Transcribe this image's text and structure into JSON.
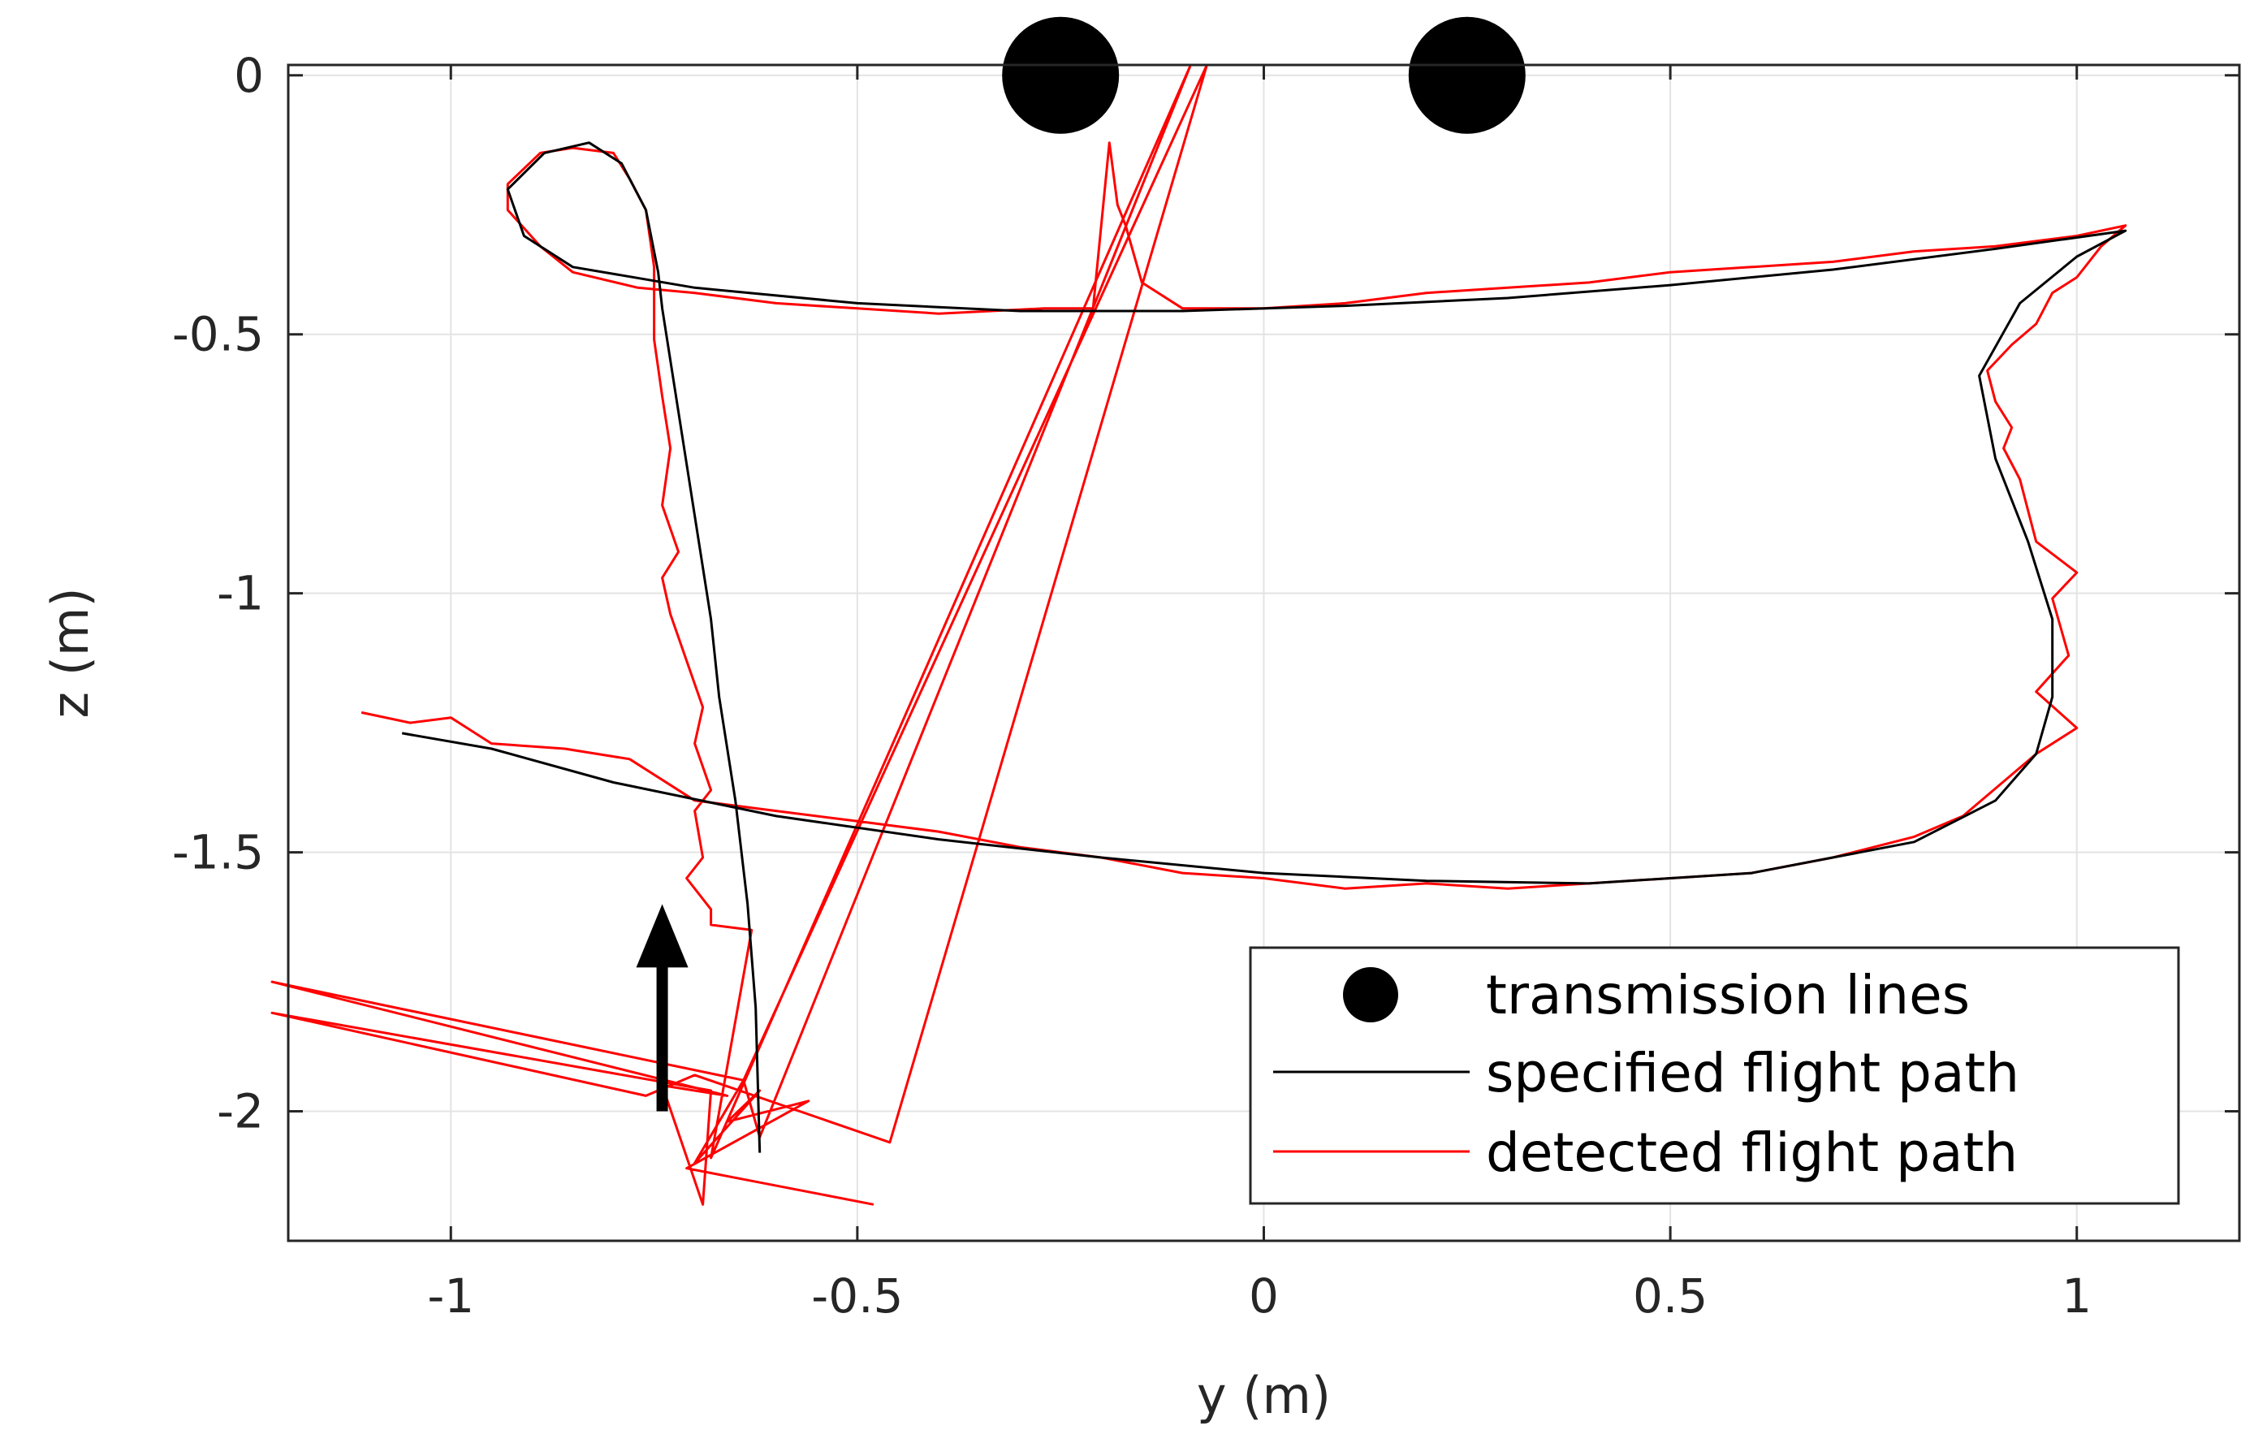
{
  "chart_data": {
    "type": "line",
    "xlabel": "y (m)",
    "ylabel": "z (m)",
    "xlim": [
      -1.2,
      1.2
    ],
    "ylim": [
      -2.25,
      0.02
    ],
    "x_ticks": [
      -1,
      -0.5,
      0,
      0.5,
      1
    ],
    "x_tick_labels": [
      "-1",
      "-0.5",
      "0",
      "0.5",
      "1"
    ],
    "y_ticks": [
      0,
      -0.5,
      -1,
      -1.5,
      -2
    ],
    "y_tick_labels": [
      "0",
      "-0.5",
      "-1",
      "-1.5",
      "-2"
    ],
    "grid": true,
    "legend_position": "bottom-right",
    "colors": {
      "transmission": "#000000",
      "specified": "#000000",
      "detected": "#ff0000",
      "grid": "#e3e3e3",
      "axis": "#262626"
    },
    "transmission_lines": {
      "name": "transmission lines",
      "points": [
        [
          -0.25,
          0.0
        ],
        [
          0.25,
          0.0
        ]
      ]
    },
    "annotation": {
      "type": "arrow",
      "from": [
        -0.74,
        -2.0
      ],
      "to": [
        -0.74,
        -1.6
      ]
    },
    "series": [
      {
        "name": "specified flight path",
        "points": [
          [
            -0.62,
            -2.08
          ],
          [
            -0.625,
            -1.8
          ],
          [
            -0.635,
            -1.6
          ],
          [
            -0.65,
            -1.4
          ],
          [
            -0.67,
            -1.2
          ],
          [
            -0.68,
            -1.05
          ],
          [
            -0.695,
            -0.9
          ],
          [
            -0.71,
            -0.75
          ],
          [
            -0.725,
            -0.6
          ],
          [
            -0.74,
            -0.45
          ],
          [
            -0.745,
            -0.38
          ],
          [
            -0.76,
            -0.26
          ],
          [
            -0.79,
            -0.17
          ],
          [
            -0.83,
            -0.13
          ],
          [
            -0.885,
            -0.15
          ],
          [
            -0.93,
            -0.22
          ],
          [
            -0.91,
            -0.31
          ],
          [
            -0.85,
            -0.37
          ],
          [
            -0.7,
            -0.41
          ],
          [
            -0.5,
            -0.44
          ],
          [
            -0.3,
            -0.455
          ],
          [
            -0.1,
            -0.455
          ],
          [
            0.1,
            -0.445
          ],
          [
            0.3,
            -0.43
          ],
          [
            0.5,
            -0.405
          ],
          [
            0.7,
            -0.375
          ],
          [
            0.9,
            -0.335
          ],
          [
            1.06,
            -0.3
          ],
          [
            1.0,
            -0.35
          ],
          [
            0.93,
            -0.44
          ],
          [
            0.88,
            -0.58
          ],
          [
            0.9,
            -0.74
          ],
          [
            0.94,
            -0.9
          ],
          [
            0.97,
            -1.05
          ],
          [
            0.97,
            -1.2
          ],
          [
            0.95,
            -1.31
          ],
          [
            0.9,
            -1.4
          ],
          [
            0.8,
            -1.48
          ],
          [
            0.6,
            -1.54
          ],
          [
            0.4,
            -1.56
          ],
          [
            0.2,
            -1.555
          ],
          [
            0.0,
            -1.54
          ],
          [
            -0.2,
            -1.51
          ],
          [
            -0.4,
            -1.475
          ],
          [
            -0.6,
            -1.43
          ],
          [
            -0.8,
            -1.365
          ],
          [
            -0.95,
            -1.3
          ],
          [
            -1.06,
            -1.27
          ]
        ]
      },
      {
        "name": "detected flight path",
        "points": [
          [
            -0.48,
            -2.18
          ],
          [
            -0.71,
            -2.11
          ],
          [
            -0.56,
            -1.98
          ],
          [
            -0.66,
            -2.02
          ],
          [
            -0.62,
            -1.96
          ],
          [
            -0.7,
            -2.1
          ],
          [
            -0.64,
            -1.94
          ],
          [
            -1.22,
            -1.75
          ],
          [
            -0.66,
            -1.97
          ],
          [
            -0.74,
            -1.95
          ],
          [
            -0.69,
            -2.18
          ],
          [
            -0.68,
            -1.96
          ],
          [
            -1.22,
            -1.81
          ],
          [
            -0.76,
            -1.97
          ],
          [
            -0.7,
            -1.93
          ],
          [
            -0.46,
            -2.06
          ],
          [
            -0.07,
            0.02
          ],
          [
            -0.64,
            -1.94
          ],
          [
            -0.62,
            -2.05
          ],
          [
            -0.09,
            0.02
          ],
          [
            -0.68,
            -2.09
          ],
          [
            -0.63,
            -1.65
          ],
          [
            -0.68,
            -1.64
          ],
          [
            -0.68,
            -1.61
          ],
          [
            -0.71,
            -1.55
          ],
          [
            -0.69,
            -1.51
          ],
          [
            -0.7,
            -1.42
          ],
          [
            -0.68,
            -1.38
          ],
          [
            -0.7,
            -1.29
          ],
          [
            -0.69,
            -1.22
          ],
          [
            -0.71,
            -1.13
          ],
          [
            -0.73,
            -1.04
          ],
          [
            -0.74,
            -0.97
          ],
          [
            -0.72,
            -0.92
          ],
          [
            -0.74,
            -0.83
          ],
          [
            -0.73,
            -0.72
          ],
          [
            -0.74,
            -0.62
          ],
          [
            -0.75,
            -0.51
          ],
          [
            -0.75,
            -0.43
          ],
          [
            -0.75,
            -0.37
          ],
          [
            -0.76,
            -0.26
          ],
          [
            -0.78,
            -0.2
          ],
          [
            -0.8,
            -0.15
          ],
          [
            -0.85,
            -0.14
          ],
          [
            -0.89,
            -0.15
          ],
          [
            -0.93,
            -0.21
          ],
          [
            -0.93,
            -0.26
          ],
          [
            -0.89,
            -0.33
          ],
          [
            -0.85,
            -0.38
          ],
          [
            -0.77,
            -0.41
          ],
          [
            -0.7,
            -0.42
          ],
          [
            -0.6,
            -0.44
          ],
          [
            -0.5,
            -0.45
          ],
          [
            -0.4,
            -0.46
          ],
          [
            -0.27,
            -0.45
          ],
          [
            -0.21,
            -0.45
          ],
          [
            -0.19,
            -0.13
          ],
          [
            -0.18,
            -0.25
          ],
          [
            -0.17,
            -0.29
          ],
          [
            -0.15,
            -0.4
          ],
          [
            -0.1,
            -0.45
          ],
          [
            0.0,
            -0.45
          ],
          [
            0.1,
            -0.44
          ],
          [
            0.2,
            -0.42
          ],
          [
            0.3,
            -0.41
          ],
          [
            0.4,
            -0.4
          ],
          [
            0.5,
            -0.38
          ],
          [
            0.6,
            -0.37
          ],
          [
            0.7,
            -0.36
          ],
          [
            0.8,
            -0.34
          ],
          [
            0.9,
            -0.33
          ],
          [
            1.0,
            -0.31
          ],
          [
            1.06,
            -0.29
          ],
          [
            1.03,
            -0.33
          ],
          [
            1.0,
            -0.39
          ],
          [
            0.97,
            -0.42
          ],
          [
            0.95,
            -0.48
          ],
          [
            0.92,
            -0.52
          ],
          [
            0.89,
            -0.57
          ],
          [
            0.9,
            -0.63
          ],
          [
            0.92,
            -0.68
          ],
          [
            0.91,
            -0.72
          ],
          [
            0.93,
            -0.78
          ],
          [
            0.94,
            -0.84
          ],
          [
            0.95,
            -0.9
          ],
          [
            1.0,
            -0.96
          ],
          [
            0.97,
            -1.01
          ],
          [
            0.99,
            -1.12
          ],
          [
            0.95,
            -1.19
          ],
          [
            1.0,
            -1.26
          ],
          [
            0.95,
            -1.31
          ],
          [
            0.92,
            -1.35
          ],
          [
            0.86,
            -1.43
          ],
          [
            0.8,
            -1.47
          ],
          [
            0.7,
            -1.51
          ],
          [
            0.6,
            -1.54
          ],
          [
            0.5,
            -1.55
          ],
          [
            0.4,
            -1.56
          ],
          [
            0.3,
            -1.57
          ],
          [
            0.2,
            -1.56
          ],
          [
            0.1,
            -1.57
          ],
          [
            0.0,
            -1.55
          ],
          [
            -0.1,
            -1.54
          ],
          [
            -0.2,
            -1.51
          ],
          [
            -0.3,
            -1.49
          ],
          [
            -0.4,
            -1.46
          ],
          [
            -0.5,
            -1.44
          ],
          [
            -0.6,
            -1.42
          ],
          [
            -0.7,
            -1.4
          ],
          [
            -0.78,
            -1.32
          ],
          [
            -0.86,
            -1.3
          ],
          [
            -0.95,
            -1.29
          ],
          [
            -1.0,
            -1.24
          ],
          [
            -1.05,
            -1.25
          ],
          [
            -1.11,
            -1.23
          ]
        ]
      }
    ]
  }
}
